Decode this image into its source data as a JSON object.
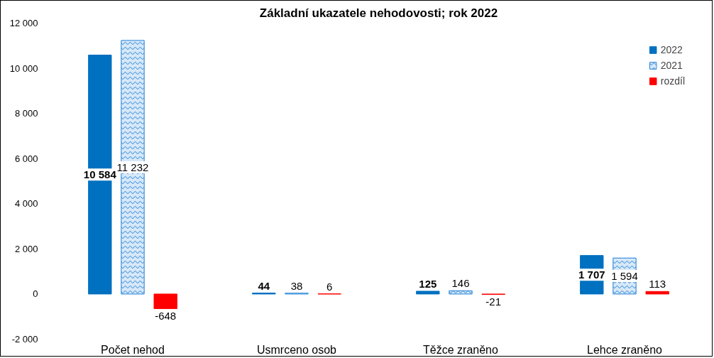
{
  "chart_data": {
    "type": "bar",
    "title": "Základní ukazatele nehodovosti; rok 2022",
    "categories": [
      "Počet nehod",
      "Usmrceno osob",
      "Těžce zraněno",
      "Lehce zraněno"
    ],
    "series": [
      {
        "name": "2022",
        "color": "#0070c0",
        "values": [
          10584,
          44,
          125,
          1707
        ],
        "value_labels": [
          "10 584",
          "44",
          "125",
          "1 707"
        ]
      },
      {
        "name": "2021",
        "color": "#1f80d8",
        "values": [
          11232,
          38,
          146,
          1594
        ],
        "value_labels": [
          "11 232",
          "38",
          "146",
          "1 594"
        ]
      },
      {
        "name": "rozdíl",
        "color": "#ff0000",
        "values": [
          -648,
          6,
          -21,
          113
        ],
        "value_labels": [
          "-648",
          "6",
          "-21",
          "113"
        ]
      }
    ],
    "ylim": [
      -2000,
      12000
    ],
    "yticks": [
      {
        "value": -2000,
        "label": "-2 000"
      },
      0,
      {
        "value": 2000,
        "label": "2 000"
      },
      {
        "value": 4000,
        "label": "4 000"
      },
      {
        "value": 6000,
        "label": "6 000"
      },
      {
        "value": 8000,
        "label": "8 000"
      },
      {
        "value": 10000,
        "label": "10 000"
      },
      {
        "value": 12000,
        "label": "12 000"
      }
    ],
    "legend": "top right"
  }
}
